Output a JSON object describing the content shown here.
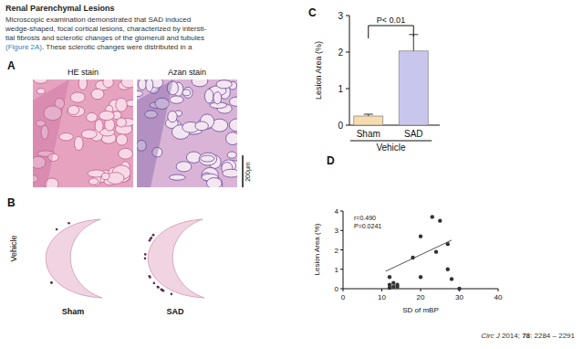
{
  "section": {
    "heading": "Renal Parenchymal Lesions",
    "lines": [
      "Microscopic examination demonstrated that SAD induced",
      "wedge-shaped, focal cortical lesions, characterized by intersti-",
      "tial fibrosis and sclerotic changes of the glomeruli and tubules"
    ],
    "last_line_link": "(Figure 2A)",
    "last_line_rest": ". These sclerotic changes were distributed in a"
  },
  "panel_a": {
    "label": "A",
    "stains": [
      "HE stain",
      "Azan stain"
    ],
    "scale_bar": "200μm"
  },
  "panel_b": {
    "label": "B",
    "row_label": "Vehicle",
    "columns": [
      "Sham",
      "SAD"
    ]
  },
  "chart_data": [
    {
      "type": "bar",
      "title": "C",
      "ylabel": "Lesion Area (%)",
      "categories": [
        "Sham",
        "SAD"
      ],
      "group_label": "Vehicle",
      "values": [
        0.25,
        2.03
      ],
      "errors": [
        0.05,
        0.45
      ],
      "colors": [
        "#f6dcae",
        "#c9c6ee"
      ],
      "ylim": [
        0,
        3
      ],
      "yticks": [
        0,
        1,
        2,
        3
      ],
      "annotations": [
        "P< 0.01"
      ]
    },
    {
      "type": "scatter",
      "title": "D",
      "xlabel": "SD of mBP",
      "ylabel": "Lesion Area (%)",
      "x": [
        12,
        12,
        13,
        13,
        14,
        14,
        12,
        18,
        20,
        20,
        23,
        24,
        25,
        27,
        27,
        28,
        30
      ],
      "values": [
        0.6,
        0.2,
        0.1,
        0.3,
        0.1,
        0.2,
        0.05,
        1.6,
        2.7,
        0.6,
        3.7,
        1.9,
        3.5,
        2.3,
        1.0,
        0.5,
        0.0
      ],
      "trendline": {
        "x": [
          11,
          28
        ],
        "values": [
          0.9,
          2.5
        ]
      },
      "color": "#333333",
      "marker": "circle",
      "xlim": [
        0,
        40
      ],
      "xticks": [
        0,
        10,
        20,
        30,
        40
      ],
      "ylim": [
        0,
        4
      ],
      "yticks": [
        0,
        1,
        2,
        3,
        4
      ],
      "annotations": [
        "r=0.490",
        "P=0.0241"
      ]
    }
  ],
  "citation": {
    "journal": "Circ J",
    "year": "2014;",
    "volume": "78",
    "pages": ": 2284 – 2291"
  }
}
